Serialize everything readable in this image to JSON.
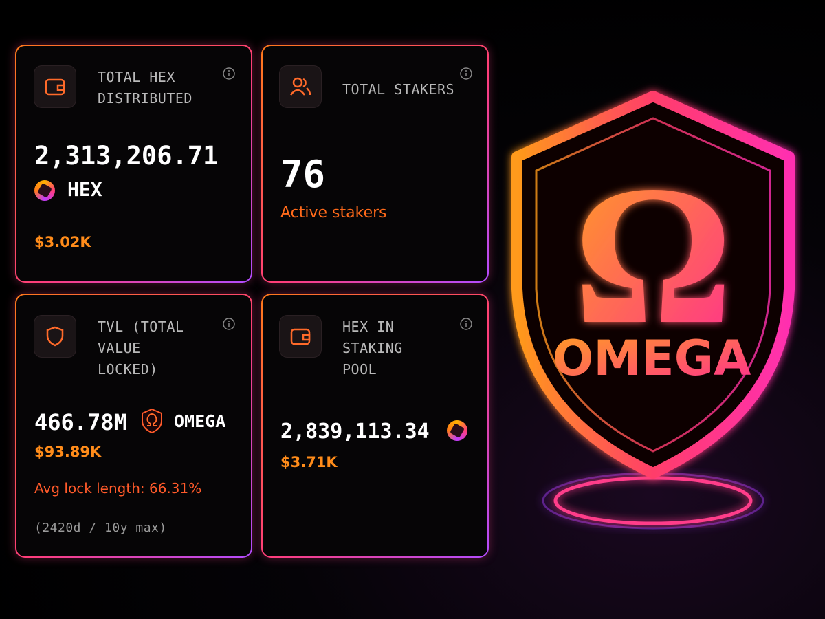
{
  "cards": [
    {
      "title": "TOTAL HEX DISTRIBUTED",
      "value": "2,313,206.71",
      "unit": "HEX",
      "usd": "$3.02K"
    },
    {
      "title": "TOTAL STAKERS",
      "value": "76",
      "caption": "Active stakers"
    },
    {
      "title": "TVL (TOTAL VALUE LOCKED)",
      "value": "466.78M",
      "unit": "OMEGA",
      "usd": "$93.89K",
      "note": "Avg lock length: 66.31%",
      "detail": "(2420d / 10y max)"
    },
    {
      "title": "HEX IN STAKING POOL",
      "value": "2,839,113.34",
      "usd": "$3.71K"
    }
  ],
  "logo": {
    "symbol": "Ω",
    "name": "OMEGA"
  }
}
